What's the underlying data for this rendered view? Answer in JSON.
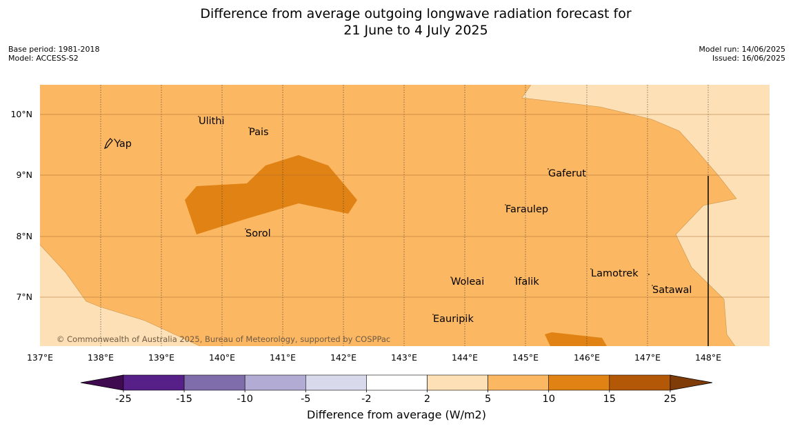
{
  "header": {
    "title_line1": "Difference from average outgoing longwave radiation forecast for",
    "title_line2": "21 June to 4 July 2025",
    "base_period": "Base period: 1981-2018",
    "model": "Model: ACCESS-S2",
    "model_run": "Model run: 14/06/2025",
    "issued": "Issued: 16/06/2025"
  },
  "map": {
    "lon_labels": [
      "137°E",
      "138°E",
      "139°E",
      "140°E",
      "141°E",
      "142°E",
      "143°E",
      "144°E",
      "145°E",
      "146°E",
      "147°E",
      "148°E"
    ],
    "lat_labels": [
      "10°N",
      "9°N",
      "8°N",
      "7°N"
    ],
    "places": [
      {
        "name": "Yap"
      },
      {
        "name": "Ulithi"
      },
      {
        "name": "Pais"
      },
      {
        "name": "Gaferut"
      },
      {
        "name": "Faraulep"
      },
      {
        "name": "Sorol"
      },
      {
        "name": "Woleai"
      },
      {
        "name": "Ifalik"
      },
      {
        "name": "Lamotrek"
      },
      {
        "name": "Satawal"
      },
      {
        "name": "Eauripik"
      }
    ],
    "copyright": "© Commonwealth of Australia 2025, Bureau of Meteorology, supported by COSPPac"
  },
  "colorbar": {
    "label": "Difference from average (W/m2)",
    "ticks": [
      "-25",
      "-15",
      "-10",
      "-5",
      "-2",
      "2",
      "5",
      "10",
      "15",
      "25"
    ],
    "colors": {
      "under": "#3f0a4f",
      "bins": [
        "#562088",
        "#7e6cab",
        "#b2abd3",
        "#d8d9ea",
        "#ffffff",
        "#fde0b5",
        "#fbb762",
        "#e08214",
        "#b35806"
      ],
      "over": "#7f3b08"
    }
  }
}
